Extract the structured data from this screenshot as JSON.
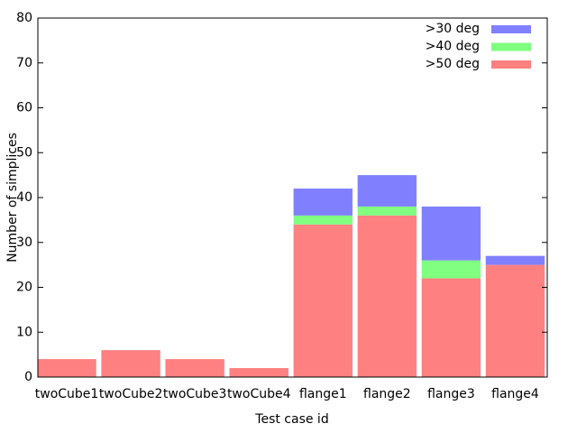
{
  "chart_data": {
    "type": "stacked-bar",
    "x_label": "Test case id",
    "y_label": "Number of simplices",
    "categories": [
      "twoCube1",
      "twoCube2",
      "twoCube3",
      "twoCube4",
      "flange1",
      "flange2",
      "flange3",
      "flange4"
    ],
    "series": [
      {
        "name": ">30 deg",
        "color": "#8080ff",
        "values": [
          0,
          0,
          0,
          0,
          6,
          7,
          12,
          2
        ]
      },
      {
        "name": ">40 deg",
        "color": "#80ff80",
        "values": [
          0,
          0,
          0,
          0,
          2,
          2,
          4,
          0
        ]
      },
      {
        "name": ">50 deg",
        "color": "#ff8080",
        "values": [
          4,
          6,
          4,
          2,
          34,
          36,
          22,
          25
        ]
      }
    ],
    "ylim": [
      0,
      80
    ],
    "yticks": [
      0,
      10,
      20,
      30,
      40,
      50,
      60,
      70,
      80
    ],
    "grid": false,
    "legend": "top-right"
  }
}
